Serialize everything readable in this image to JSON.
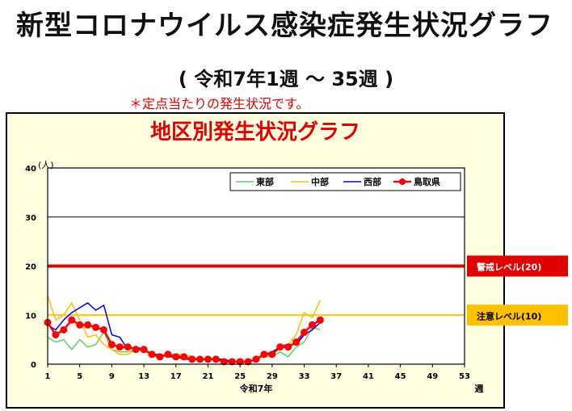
{
  "header": {
    "title": "新型コロナウイルス感染症発生状況グラフ",
    "subtitle": "( 令和7年1週 ～ 35週 )",
    "note": "＊定点当たりの発生状況です。"
  },
  "colors": {
    "panel_bg": "#ffffe0",
    "heading": "#e00000",
    "east": "#66cc66",
    "central": "#ffc000",
    "west": "#0000ff",
    "tottori": "#ff0000",
    "warning": "#e00000",
    "caution": "#ffc000"
  },
  "chart_data": {
    "type": "line",
    "title": "地区別発生状況グラフ",
    "xlabel": "令和7年",
    "x_unit": "週",
    "ylabel": "(人)",
    "ylim": [
      0,
      40
    ],
    "xlim": [
      1,
      53
    ],
    "yticks": [
      0,
      10,
      20,
      30,
      40
    ],
    "xticks": [
      "1",
      "5",
      "9",
      "13",
      "17",
      "21",
      "25",
      "29",
      "33",
      "37",
      "41",
      "45",
      "49",
      "53"
    ],
    "legend_position": "top-right",
    "series": [
      {
        "name": "東部",
        "key": "east",
        "x": [
          1,
          2,
          3,
          4,
          5,
          6,
          7,
          8,
          9,
          10,
          11,
          12,
          13,
          14,
          15,
          16,
          17,
          18,
          19,
          20,
          21,
          22,
          23,
          24,
          25,
          26,
          27,
          28,
          29,
          30,
          31,
          32,
          33,
          34,
          35
        ],
        "values": [
          5.5,
          4.5,
          5,
          3,
          5,
          3.5,
          4,
          6.5,
          3,
          2.5,
          2.5,
          3,
          3,
          2,
          1.5,
          2,
          2,
          1.5,
          1,
          1,
          1,
          1,
          0.5,
          0.5,
          0.5,
          0.5,
          1,
          1.5,
          1.5,
          2.5,
          1.5,
          3.5,
          4.5,
          7.5,
          7
        ]
      },
      {
        "name": "中部",
        "key": "central",
        "x": [
          1,
          2,
          3,
          4,
          5,
          6,
          7,
          8,
          9,
          10,
          11,
          12,
          13,
          14,
          15,
          16,
          17,
          18,
          19,
          20,
          21,
          22,
          23,
          24,
          25,
          26,
          27,
          28,
          29,
          30,
          31,
          32,
          33,
          34,
          35
        ],
        "values": [
          14,
          9,
          10,
          12.5,
          9,
          5.5,
          6,
          4,
          3,
          2,
          2,
          3,
          3,
          1.5,
          1.5,
          2,
          2,
          2,
          1.5,
          1,
          1,
          1,
          1,
          0.5,
          0.5,
          0.5,
          1,
          1.5,
          2,
          4,
          4,
          6,
          10.5,
          9.5,
          13
        ]
      },
      {
        "name": "西部",
        "key": "west",
        "x": [
          1,
          2,
          3,
          4,
          5,
          6,
          7,
          8,
          9,
          10,
          11,
          12,
          13,
          14,
          15,
          16,
          17,
          18,
          19,
          20,
          21,
          22,
          23,
          24,
          25,
          26,
          27,
          28,
          29,
          30,
          31,
          32,
          33,
          34,
          35
        ],
        "values": [
          8,
          7,
          9,
          10.5,
          11.5,
          12.5,
          11,
          12,
          6,
          5.5,
          3,
          3.5,
          3,
          2,
          2,
          1.5,
          1.5,
          1,
          1,
          1,
          1,
          1,
          1,
          0.5,
          0.5,
          0.5,
          1,
          2,
          2.5,
          3.5,
          4,
          4,
          6,
          7,
          8.5
        ]
      },
      {
        "name": "鳥取県",
        "key": "tottori",
        "x": [
          1,
          2,
          3,
          4,
          5,
          6,
          7,
          8,
          9,
          10,
          11,
          12,
          13,
          14,
          15,
          16,
          17,
          18,
          19,
          20,
          21,
          22,
          23,
          24,
          25,
          26,
          27,
          28,
          29,
          30,
          31,
          32,
          33,
          34,
          35
        ],
        "values": [
          8.5,
          6,
          7,
          9,
          8,
          8,
          7.5,
          7,
          4,
          3.5,
          3.5,
          3,
          3,
          2,
          1.5,
          2,
          1.5,
          1.5,
          1,
          1,
          1,
          1,
          0.5,
          0.5,
          0.5,
          0.5,
          1,
          2,
          2,
          3.5,
          3.5,
          4.5,
          6.5,
          8,
          9
        ]
      }
    ],
    "reference_lines": [
      {
        "label": "警戒レベル(20)",
        "value": 20,
        "key": "warning"
      },
      {
        "label": "注意レベル(10)",
        "value": 10,
        "key": "caution"
      }
    ]
  }
}
